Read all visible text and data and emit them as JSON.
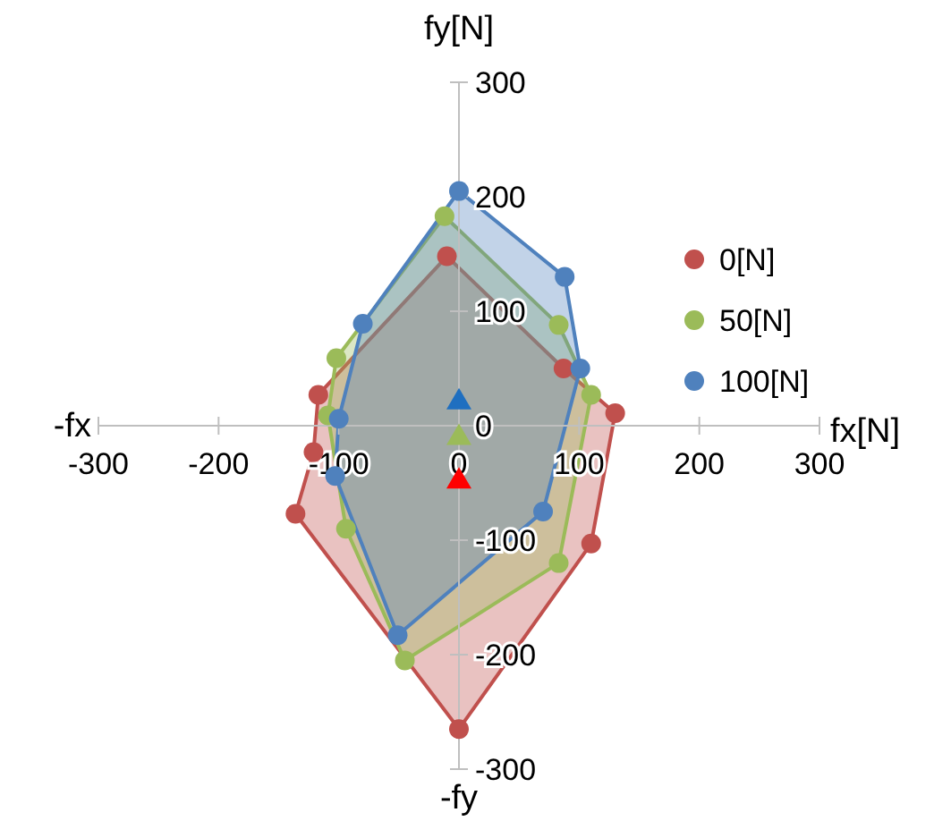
{
  "chart_data": {
    "type": "area",
    "xlabel": "fx[N]",
    "ylabel": "fy[N]",
    "annotations": [
      "-fx",
      "-fy"
    ],
    "xlim": [
      -300,
      300
    ],
    "ylim": [
      -300,
      300
    ],
    "xticks": [
      -300,
      -200,
      -100,
      0,
      100,
      200,
      300
    ],
    "yticks": [
      -300,
      -200,
      -100,
      0,
      100,
      200,
      300
    ],
    "grid": false,
    "legend": "right",
    "marker": "circle",
    "series": [
      {
        "name": "0[N]",
        "color": "#c0504d",
        "x": [
          -10,
          87,
          130,
          110,
          0,
          -136,
          -121,
          -117
        ],
        "values": [
          148,
          50,
          11,
          -103,
          -265,
          -77,
          -23,
          27
        ]
      },
      {
        "name": "50[N]",
        "color": "#9bbb59",
        "x": [
          -12,
          83,
          110,
          83,
          -45,
          -94,
          -109,
          -102
        ],
        "values": [
          183,
          88,
          27,
          -120,
          -205,
          -90,
          9,
          59
        ]
      },
      {
        "name": "100[N]",
        "color": "#4f81bd",
        "x": [
          0,
          88,
          101,
          70,
          -51,
          -103,
          -100,
          -80
        ],
        "values": [
          205,
          130,
          50,
          -75,
          -183,
          -44,
          6,
          89
        ]
      },
      {
        "type": "scatter",
        "marker": "triangle",
        "color": "#ff0000",
        "x": [
          0
        ],
        "values": [
          -47
        ]
      },
      {
        "type": "scatter",
        "marker": "triangle",
        "color": "#9bbb59",
        "x": [
          0
        ],
        "values": [
          -9
        ]
      },
      {
        "type": "scatter",
        "marker": "triangle",
        "color": "#1f6fc0",
        "x": [
          0
        ],
        "values": [
          22
        ]
      }
    ]
  }
}
